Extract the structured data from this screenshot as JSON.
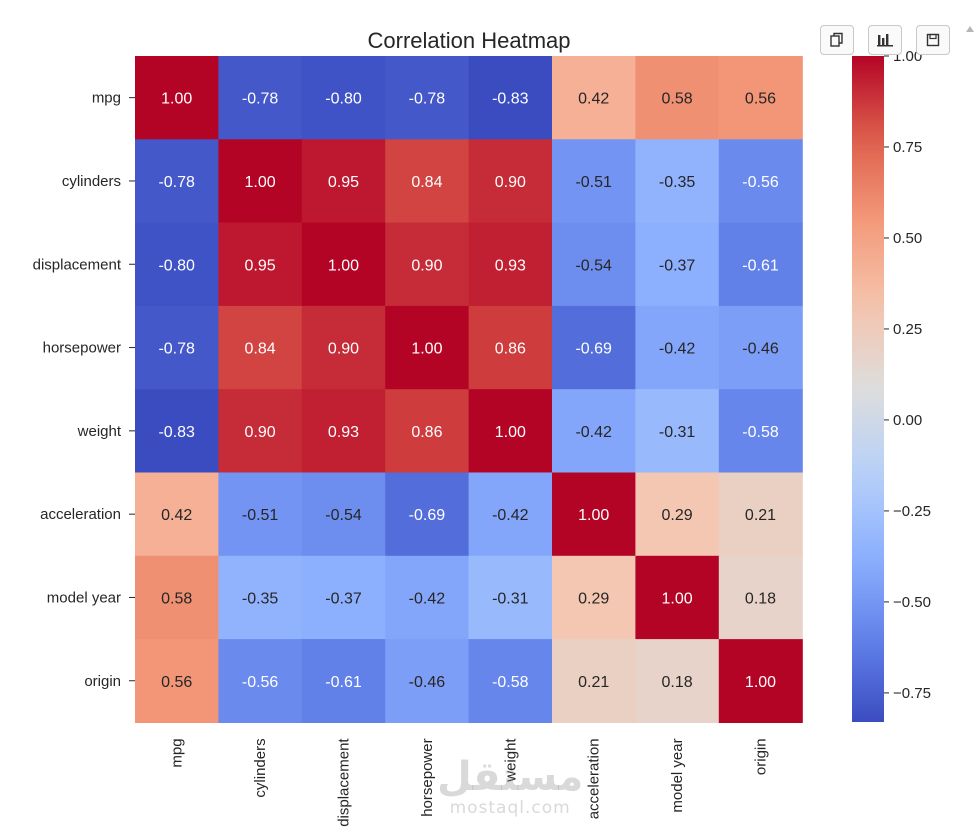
{
  "toolbar": {
    "buttons": [
      {
        "name": "copy-button",
        "icon": "copy-icon"
      },
      {
        "name": "chart-button",
        "icon": "bar-chart-icon"
      },
      {
        "name": "save-button",
        "icon": "save-icon"
      }
    ]
  },
  "watermark": {
    "main": "مستقل",
    "sub": "mostaql.com"
  },
  "chart_data": {
    "type": "heatmap",
    "title": "Correlation Heatmap",
    "xlabel": "",
    "ylabel": "",
    "colormap": "coolwarm",
    "vmin": -0.83,
    "vmax": 1.0,
    "annotation_format": "0.00",
    "x_categories": [
      "mpg",
      "cylinders",
      "displacement",
      "horsepower",
      "weight",
      "acceleration",
      "model year",
      "origin"
    ],
    "y_categories": [
      "mpg",
      "cylinders",
      "displacement",
      "horsepower",
      "weight",
      "acceleration",
      "model year",
      "origin"
    ],
    "values": [
      [
        1.0,
        -0.78,
        -0.8,
        -0.78,
        -0.83,
        0.42,
        0.58,
        0.56
      ],
      [
        -0.78,
        1.0,
        0.95,
        0.84,
        0.9,
        -0.51,
        -0.35,
        -0.56
      ],
      [
        -0.8,
        0.95,
        1.0,
        0.9,
        0.93,
        -0.54,
        -0.37,
        -0.61
      ],
      [
        -0.78,
        0.84,
        0.9,
        1.0,
        0.86,
        -0.69,
        -0.42,
        -0.46
      ],
      [
        -0.83,
        0.9,
        0.93,
        0.86,
        1.0,
        -0.42,
        -0.31,
        -0.58
      ],
      [
        0.42,
        -0.51,
        -0.54,
        -0.69,
        -0.42,
        1.0,
        0.29,
        0.21
      ],
      [
        0.58,
        -0.35,
        -0.37,
        -0.42,
        -0.31,
        0.29,
        1.0,
        0.18
      ],
      [
        0.56,
        -0.56,
        -0.61,
        -0.46,
        -0.58,
        0.21,
        0.18,
        1.0
      ]
    ],
    "colorbar": {
      "ticks": [
        1.0,
        0.75,
        0.5,
        0.25,
        0.0,
        -0.25,
        -0.5,
        -0.75
      ],
      "tick_labels": [
        "1.00",
        "0.75",
        "0.50",
        "0.25",
        "0.00",
        "−0.25",
        "−0.50",
        "−0.75"
      ]
    }
  }
}
